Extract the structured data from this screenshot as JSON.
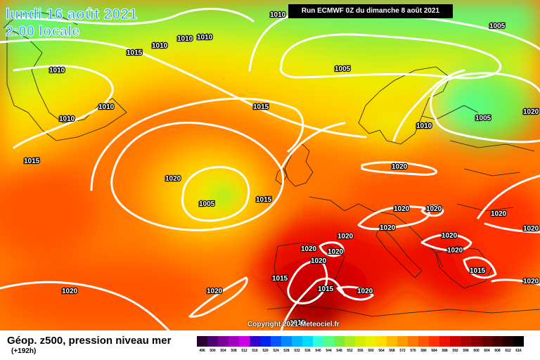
{
  "header": {
    "date_line": "lundi 16 août 2021",
    "time_line": "2:00 locale",
    "run_banner": "Run ECMWF 0Z du dimanche 8 août 2021"
  },
  "copyright": "Copyright 2021 Meteociel.fr",
  "footer": {
    "variable_title": "Géop. z500, pression niveau mer",
    "forecast_step": "(+192h)"
  },
  "scale": {
    "ticks": [
      "496",
      "500",
      "504",
      "508",
      "512",
      "516",
      "520",
      "524",
      "528",
      "532",
      "536",
      "540",
      "544",
      "548",
      "552",
      "556",
      "560",
      "564",
      "568",
      "572",
      "576",
      "580",
      "584",
      "588",
      "592",
      "596",
      "600",
      "604",
      "608",
      "612",
      "616"
    ],
    "colors": [
      "#2a0033",
      "#4e006e",
      "#7a0099",
      "#a000bf",
      "#cc00e6",
      "#3300cc",
      "#0022ee",
      "#0055ff",
      "#0088ff",
      "#00b4ff",
      "#00dcff",
      "#33ffd6",
      "#55ff88",
      "#77ee44",
      "#aaee22",
      "#d4ee00",
      "#eeee00",
      "#ffdd00",
      "#ffbb00",
      "#ff9900",
      "#ff7700",
      "#ff5500",
      "#ff3300",
      "#ee1100",
      "#cc0000",
      "#aa0000",
      "#880000",
      "#660000",
      "#440000",
      "#220000",
      "#000000"
    ]
  },
  "isobar_labels": [
    "1010",
    "1010",
    "1010",
    "1010",
    "1015",
    "1010",
    "1010",
    "1010",
    "1010",
    "1015",
    "1015",
    "1020",
    "1005",
    "1015",
    "1005",
    "1005",
    "1005",
    "1005",
    "1010",
    "1020",
    "1020",
    "1020",
    "1020",
    "1020",
    "1020",
    "1020",
    "1020",
    "1020",
    "1020",
    "1020",
    "1015",
    "1015",
    "1015",
    "1020",
    "1020",
    "1020",
    "1020",
    "1020",
    "1015",
    "1020"
  ],
  "colors": {
    "date_text": "#29a4ff",
    "isobar": "#ffffff",
    "banner_bg": "#000000"
  }
}
